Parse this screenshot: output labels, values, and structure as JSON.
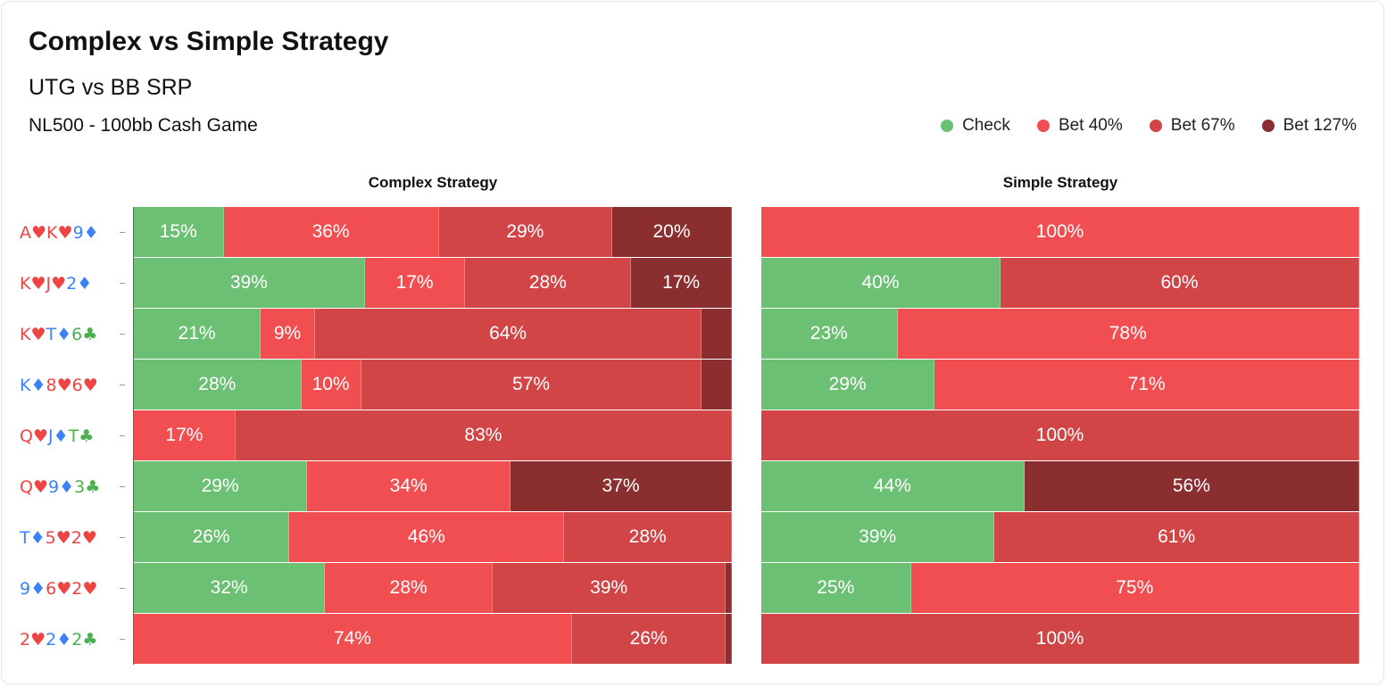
{
  "title": "Complex vs Simple Strategy",
  "subtitle": "UTG vs BB SRP",
  "meta": "NL500 - 100bb Cash Game",
  "colors": {
    "check": "#6cc074",
    "bet40": "#f04e50",
    "bet67": "#d14547",
    "bet127": "#8b2e30",
    "heart": "#ee4444",
    "diamond": "#3b82f6",
    "club": "#4caf50"
  },
  "legend": [
    {
      "label": "Check",
      "color": "#6cc074"
    },
    {
      "label": "Bet 40%",
      "color": "#f04e50"
    },
    {
      "label": "Bet 67%",
      "color": "#d14547"
    },
    {
      "label": "Bet 127%",
      "color": "#8b2e30"
    }
  ],
  "chart_data": [
    {
      "type": "bar",
      "stacked": "horizontal-100",
      "title": "Complex Strategy",
      "categories": [
        "A♥K♥9♦",
        "K♥J♥2♦",
        "K♥T♦6♣",
        "K♦8♥6♥",
        "Q♥J♦T♣",
        "Q♥9♦3♣",
        "T♦5♥2♥",
        "9♦6♥2♥",
        "2♥2♦2♣"
      ],
      "series": [
        {
          "name": "Check",
          "values": [
            15,
            39,
            21,
            28,
            0,
            29,
            26,
            32,
            0
          ]
        },
        {
          "name": "Bet 40%",
          "values": [
            36,
            17,
            9,
            10,
            17,
            34,
            46,
            28,
            74
          ]
        },
        {
          "name": "Bet 67%",
          "values": [
            29,
            28,
            64,
            57,
            83,
            0,
            28,
            39,
            26
          ]
        },
        {
          "name": "Bet 127%",
          "values": [
            20,
            17,
            5,
            5,
            0,
            37,
            0,
            1,
            1
          ]
        }
      ],
      "xlim": [
        0,
        100
      ]
    },
    {
      "type": "bar",
      "stacked": "horizontal-100",
      "title": "Simple Strategy",
      "categories": [
        "A♥K♥9♦",
        "K♥J♥2♦",
        "K♥T♦6♣",
        "K♦8♥6♥",
        "Q♥J♦T♣",
        "Q♥9♦3♣",
        "T♦5♥2♥",
        "9♦6♥2♥",
        "2♥2♦2♣"
      ],
      "series": [
        {
          "name": "Check",
          "values": [
            0,
            40,
            23,
            29,
            0,
            44,
            39,
            25,
            0
          ]
        },
        {
          "name": "Bet 40%",
          "values": [
            100,
            0,
            78,
            71,
            0,
            0,
            0,
            75,
            0
          ]
        },
        {
          "name": "Bet 67%",
          "values": [
            0,
            60,
            0,
            0,
            100,
            0,
            61,
            0,
            100
          ]
        },
        {
          "name": "Bet 127%",
          "values": [
            0,
            0,
            0,
            0,
            0,
            56,
            0,
            0,
            0
          ]
        }
      ],
      "xlim": [
        0,
        100
      ]
    }
  ]
}
